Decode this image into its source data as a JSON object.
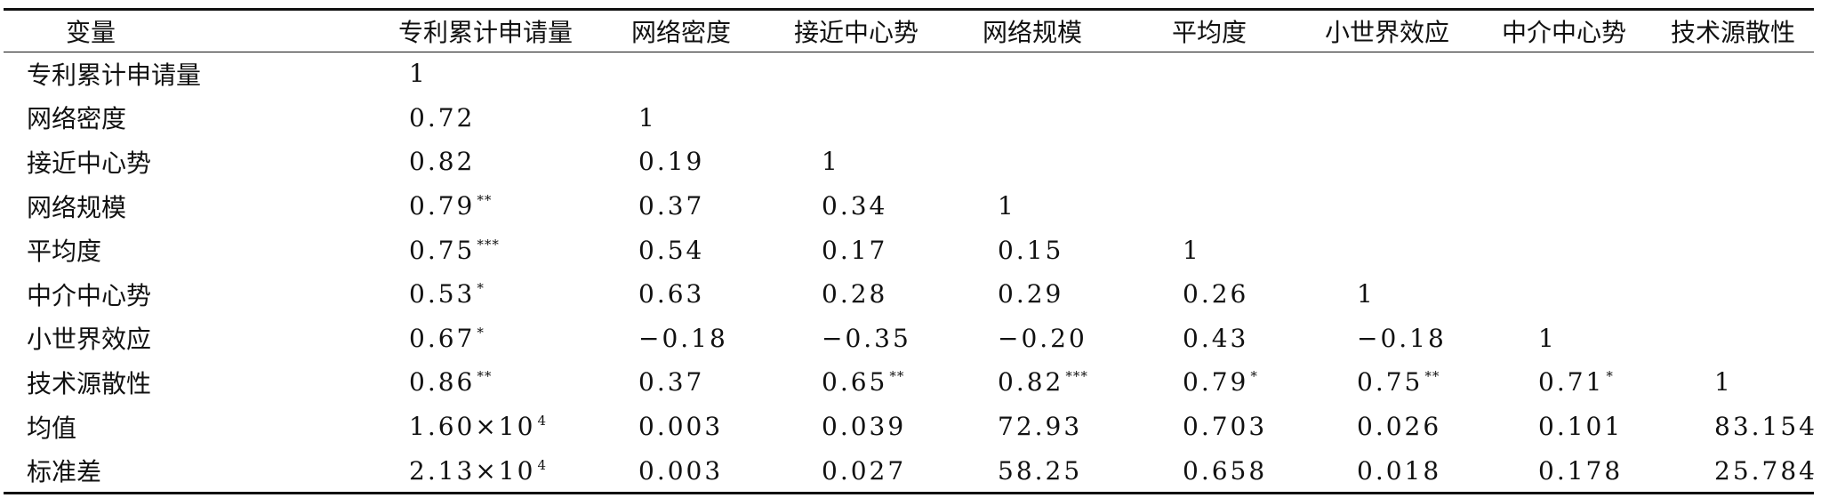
{
  "table": {
    "header": [
      "变量",
      "专利累计申请量",
      "网络密度",
      "接近中心势",
      "网络规模",
      "平均度",
      "小世界效应",
      "中介中心势",
      "技术源散性"
    ],
    "rows": [
      {
        "label": "专利累计申请量",
        "cells": [
          {
            "v": "1",
            "s": ""
          },
          {
            "v": "",
            "s": ""
          },
          {
            "v": "",
            "s": ""
          },
          {
            "v": "",
            "s": ""
          },
          {
            "v": "",
            "s": ""
          },
          {
            "v": "",
            "s": ""
          },
          {
            "v": "",
            "s": ""
          },
          {
            "v": "",
            "s": ""
          }
        ]
      },
      {
        "label": "网络密度",
        "cells": [
          {
            "v": "0.72",
            "s": ""
          },
          {
            "v": "1",
            "s": ""
          },
          {
            "v": "",
            "s": ""
          },
          {
            "v": "",
            "s": ""
          },
          {
            "v": "",
            "s": ""
          },
          {
            "v": "",
            "s": ""
          },
          {
            "v": "",
            "s": ""
          },
          {
            "v": "",
            "s": ""
          }
        ]
      },
      {
        "label": "接近中心势",
        "cells": [
          {
            "v": "0.82",
            "s": ""
          },
          {
            "v": "0.19",
            "s": ""
          },
          {
            "v": "1",
            "s": ""
          },
          {
            "v": "",
            "s": ""
          },
          {
            "v": "",
            "s": ""
          },
          {
            "v": "",
            "s": ""
          },
          {
            "v": "",
            "s": ""
          },
          {
            "v": "",
            "s": ""
          }
        ]
      },
      {
        "label": "网络规模",
        "cells": [
          {
            "v": "0.79",
            "s": "**"
          },
          {
            "v": "0.37",
            "s": ""
          },
          {
            "v": "0.34",
            "s": ""
          },
          {
            "v": "1",
            "s": ""
          },
          {
            "v": "",
            "s": ""
          },
          {
            "v": "",
            "s": ""
          },
          {
            "v": "",
            "s": ""
          },
          {
            "v": "",
            "s": ""
          }
        ]
      },
      {
        "label": "平均度",
        "cells": [
          {
            "v": "0.75",
            "s": "***"
          },
          {
            "v": "0.54",
            "s": ""
          },
          {
            "v": "0.17",
            "s": ""
          },
          {
            "v": "0.15",
            "s": ""
          },
          {
            "v": "1",
            "s": ""
          },
          {
            "v": "",
            "s": ""
          },
          {
            "v": "",
            "s": ""
          },
          {
            "v": "",
            "s": ""
          }
        ]
      },
      {
        "label": "中介中心势",
        "cells": [
          {
            "v": "0.53",
            "s": "*"
          },
          {
            "v": "0.63",
            "s": ""
          },
          {
            "v": "0.28",
            "s": ""
          },
          {
            "v": "0.29",
            "s": ""
          },
          {
            "v": "0.26",
            "s": ""
          },
          {
            "v": "1",
            "s": ""
          },
          {
            "v": "",
            "s": ""
          },
          {
            "v": "",
            "s": ""
          }
        ]
      },
      {
        "label": "小世界效应",
        "cells": [
          {
            "v": "0.67",
            "s": "*"
          },
          {
            "v": "−0.18",
            "s": ""
          },
          {
            "v": "−0.35",
            "s": ""
          },
          {
            "v": "−0.20",
            "s": ""
          },
          {
            "v": "0.43",
            "s": ""
          },
          {
            "v": "−0.18",
            "s": ""
          },
          {
            "v": "1",
            "s": ""
          },
          {
            "v": "",
            "s": ""
          }
        ]
      },
      {
        "label": "技术源散性",
        "cells": [
          {
            "v": "0.86",
            "s": "**"
          },
          {
            "v": "0.37",
            "s": ""
          },
          {
            "v": "0.65",
            "s": "**"
          },
          {
            "v": "0.82",
            "s": "***"
          },
          {
            "v": "0.79",
            "s": "*"
          },
          {
            "v": "0.75",
            "s": "**"
          },
          {
            "v": "0.71",
            "s": "*"
          },
          {
            "v": "1",
            "s": ""
          }
        ]
      },
      {
        "label": "均值",
        "cells": [
          {
            "v": "1.60×10",
            "s": "4"
          },
          {
            "v": "0.003",
            "s": ""
          },
          {
            "v": "0.039",
            "s": ""
          },
          {
            "v": "72.93",
            "s": ""
          },
          {
            "v": "0.703",
            "s": ""
          },
          {
            "v": "0.026",
            "s": ""
          },
          {
            "v": "0.101",
            "s": ""
          },
          {
            "v": "83.154",
            "s": ""
          }
        ]
      },
      {
        "label": "标准差",
        "cells": [
          {
            "v": "2.13×10",
            "s": "4"
          },
          {
            "v": "0.003",
            "s": ""
          },
          {
            "v": "0.027",
            "s": ""
          },
          {
            "v": "58.25",
            "s": ""
          },
          {
            "v": "0.658",
            "s": ""
          },
          {
            "v": "0.018",
            "s": ""
          },
          {
            "v": "0.178",
            "s": ""
          },
          {
            "v": "25.784",
            "s": ""
          }
        ]
      }
    ]
  }
}
